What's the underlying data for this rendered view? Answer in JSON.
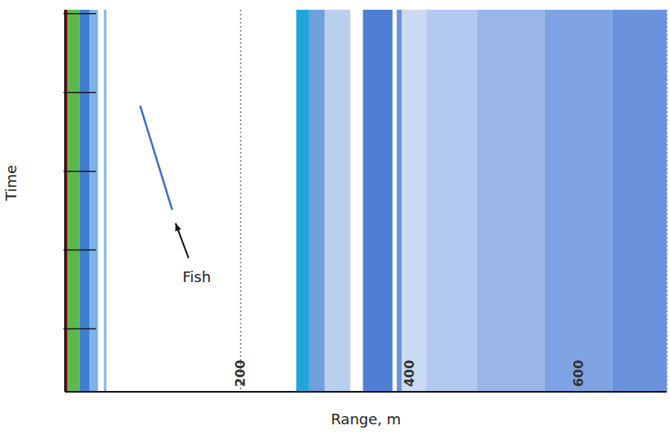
{
  "chart_data": {
    "type": "line",
    "x_label": "Range, m",
    "y_label": "Time",
    "xlim": [
      -8,
      705
    ],
    "xticks": [
      200,
      400,
      600
    ],
    "ylim": [
      0,
      4.85
    ],
    "yticks": [
      0.8,
      1.8,
      2.8,
      3.8,
      4.8
    ],
    "tick_labels": "x",
    "grid": true,
    "series": [
      {
        "color": "#3f6fc4",
        "x": [
          81,
          119
        ],
        "values": [
          3.63,
          2.31
        ]
      }
    ],
    "annotations": [
      {
        "text": "Fish",
        "x": 122,
        "y": 2.17
      }
    ],
    "bands": [
      {
        "x": [
          -8,
          -5
        ],
        "color": "#8b1a1a"
      },
      {
        "x": [
          -5,
          9
        ],
        "color": "#5cb84a"
      },
      {
        "x": [
          9,
          21
        ],
        "color": "#3f7fd0"
      },
      {
        "x": [
          21,
          31
        ],
        "color": "#7fb2e6"
      },
      {
        "x": [
          38,
          41
        ],
        "color": "#8fb4e4"
      },
      {
        "x": [
          266,
          281
        ],
        "color": "#1ea6dc"
      },
      {
        "x": [
          281,
          300
        ],
        "color": "#6f9fdc"
      },
      {
        "x": [
          300,
          330
        ],
        "color": "#b9cfee"
      },
      {
        "x": [
          345,
          380
        ],
        "color": "#4f7fd4"
      },
      {
        "x": [
          385,
          391
        ],
        "color": "#6b95dc"
      },
      {
        "x": [
          391,
          420
        ],
        "color": "#c9daf2"
      },
      {
        "x": [
          420,
          480
        ],
        "color": "#b3c8ee"
      },
      {
        "x": [
          480,
          560
        ],
        "color": "#9ab6e8"
      },
      {
        "x": [
          560,
          640
        ],
        "color": "#7fa2e2"
      },
      {
        "x": [
          640,
          705
        ],
        "color": "#6b93dc"
      }
    ]
  }
}
